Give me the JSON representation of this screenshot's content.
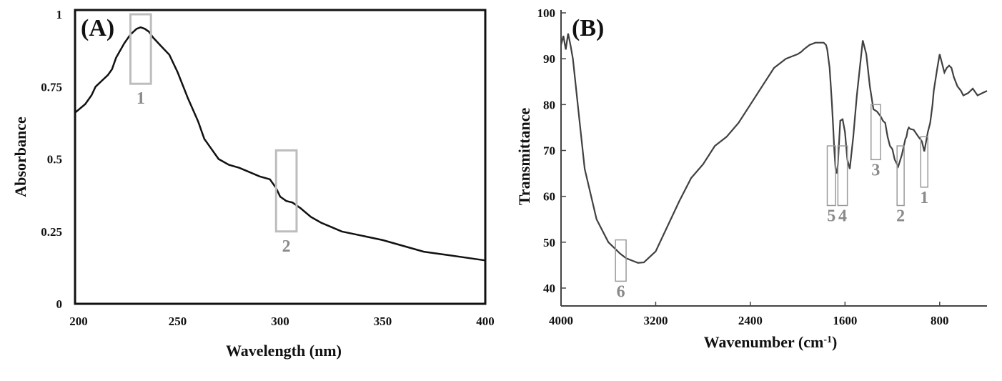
{
  "chart_data": [
    {
      "type": "line",
      "panel_label": "(A)",
      "xlabel": "Wavelength (nm)",
      "ylabel": "Absorbance",
      "xlim": [
        200,
        400
      ],
      "ylim": [
        0,
        1
      ],
      "xticks": [
        200,
        250,
        300,
        350,
        400
      ],
      "xtick_labels": [
        "200",
        "250",
        "300",
        "350",
        "400"
      ],
      "yticks": [
        0,
        0.25,
        0.5,
        0.75,
        1
      ],
      "ytick_labels": [
        "0",
        "0.25",
        "0.5",
        "0.75",
        "1"
      ],
      "line_color": "#111111",
      "series": [
        {
          "x": [
            200,
            205,
            208,
            210,
            213,
            216,
            218,
            220,
            224,
            227,
            230,
            232,
            234,
            236,
            238,
            242,
            246,
            250,
            255,
            260,
            263,
            266,
            270,
            275,
            280,
            285,
            290,
            295,
            298,
            300,
            303,
            306,
            310,
            315,
            320,
            325,
            330,
            340,
            350,
            360,
            370,
            380,
            390,
            400
          ],
          "y": [
            0.66,
            0.69,
            0.72,
            0.75,
            0.77,
            0.79,
            0.81,
            0.85,
            0.9,
            0.93,
            0.95,
            0.955,
            0.95,
            0.94,
            0.92,
            0.89,
            0.86,
            0.8,
            0.71,
            0.63,
            0.57,
            0.54,
            0.5,
            0.48,
            0.47,
            0.455,
            0.44,
            0.43,
            0.4,
            0.37,
            0.355,
            0.35,
            0.33,
            0.3,
            0.28,
            0.265,
            0.25,
            0.235,
            0.22,
            0.2,
            0.18,
            0.17,
            0.16,
            0.15
          ]
        }
      ],
      "annotations": [
        {
          "label": "1",
          "x_range": [
            227,
            237
          ],
          "y_range": [
            0.76,
            1.0
          ]
        },
        {
          "label": "2",
          "x_range": [
            298,
            308
          ],
          "y_range": [
            0.25,
            0.53
          ]
        }
      ]
    },
    {
      "type": "line",
      "panel_label": "(B)",
      "xlabel": "Wavenumber (cm",
      "xlabel_sup": "-1",
      "xlabel_end": ")",
      "ylabel": "Transmittance",
      "xlim": [
        4000,
        400
      ],
      "ylim": [
        36,
        100
      ],
      "xticks": [
        4000,
        3200,
        2400,
        1600,
        800
      ],
      "xtick_labels": [
        "4000",
        "3200",
        "2400",
        "1600",
        "800"
      ],
      "yticks": [
        40,
        50,
        60,
        70,
        80,
        90,
        100
      ],
      "ytick_labels": [
        "40",
        "50",
        "60",
        "70",
        "80",
        "90",
        "100"
      ],
      "line_color": "#404040",
      "series": [
        {
          "x": [
            4000,
            3980,
            3960,
            3940,
            3920,
            3900,
            3850,
            3800,
            3700,
            3600,
            3500,
            3450,
            3400,
            3350,
            3300,
            3200,
            3000,
            2900,
            2800,
            2700,
            2600,
            2500,
            2400,
            2300,
            2200,
            2100,
            2050,
            2000,
            1970,
            1950,
            1900,
            1850,
            1800,
            1780,
            1760,
            1750,
            1745,
            1730,
            1720,
            1710,
            1700,
            1690,
            1680,
            1670,
            1660,
            1650,
            1640,
            1620,
            1600,
            1580,
            1560,
            1530,
            1500,
            1450,
            1420,
            1390,
            1360,
            1330,
            1300,
            1280,
            1260,
            1240,
            1220,
            1200,
            1180,
            1150,
            1120,
            1090,
            1080,
            1070,
            1060,
            1050,
            1020,
            980,
            950,
            930,
            900,
            880,
            860,
            850,
            820,
            800,
            780,
            760,
            740,
            720,
            700,
            680,
            650,
            620,
            600,
            560,
            520,
            480,
            440,
            400
          ],
          "y": [
            93,
            95,
            92,
            95.5,
            93,
            90,
            78,
            66,
            55,
            50,
            47.5,
            46.5,
            46,
            45.5,
            45.6,
            48,
            59,
            64,
            67,
            71,
            73,
            76,
            80,
            84,
            88,
            90,
            90.5,
            91,
            91.5,
            92,
            93,
            93.5,
            93.5,
            93.5,
            93,
            92,
            91,
            88,
            84,
            80,
            75,
            70,
            66,
            65,
            67,
            72,
            76.5,
            76.8,
            74,
            68,
            66,
            73,
            82,
            94,
            91,
            84,
            79,
            78.5,
            77.5,
            76.5,
            76,
            73,
            71,
            70.3,
            68,
            66.5,
            69,
            72.5,
            73,
            74.5,
            75,
            74.7,
            74.5,
            73,
            72,
            69.8,
            74,
            76,
            80,
            83,
            88,
            91,
            89,
            87,
            88,
            88.5,
            88,
            86,
            84,
            83,
            82,
            82.5,
            83.5,
            82,
            82.5,
            83
          ]
        }
      ],
      "annotations": [
        {
          "label": "1",
          "x_range": [
            900,
            960
          ],
          "y_range": [
            62,
            73
          ]
        },
        {
          "label": "2",
          "x_range": [
            1100,
            1160
          ],
          "y_range": [
            58,
            71
          ]
        },
        {
          "label": "3",
          "x_range": [
            1300,
            1380
          ],
          "y_range": [
            68,
            80
          ]
        },
        {
          "label": "4",
          "x_range": [
            1580,
            1660
          ],
          "y_range": [
            58,
            71
          ]
        },
        {
          "label": "5",
          "x_range": [
            1680,
            1750
          ],
          "y_range": [
            58,
            71
          ]
        },
        {
          "label": "6",
          "x_range": [
            3450,
            3540
          ],
          "y_range": [
            41.5,
            50.5
          ]
        }
      ]
    }
  ]
}
